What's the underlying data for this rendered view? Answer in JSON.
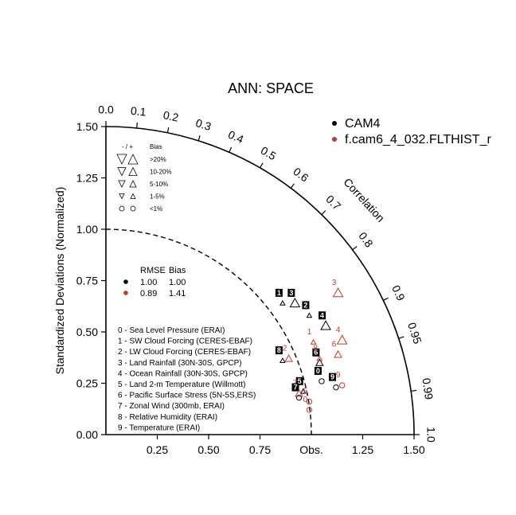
{
  "chart_data": {
    "type": "scatter",
    "title": "ANN: SPACE",
    "ylabel": "Standardized Deviations (Normalized)",
    "xlabel": "",
    "correlation_label": "Correlation",
    "obs_label": "Obs.",
    "ylim": [
      0,
      1.5
    ],
    "xlim": [
      0,
      1.5
    ],
    "x_ticks": [
      {
        "value": 0.25,
        "label": "0.25"
      },
      {
        "value": 0.5,
        "label": "0.50"
      },
      {
        "value": 0.75,
        "label": "0.75"
      },
      {
        "value": 1.25,
        "label": "1.25"
      },
      {
        "value": 1.5,
        "label": "1.50"
      }
    ],
    "y_ticks": [
      {
        "value": 0.0,
        "label": "0.00"
      },
      {
        "value": 0.25,
        "label": "0.25"
      },
      {
        "value": 0.5,
        "label": "0.50"
      },
      {
        "value": 0.75,
        "label": "0.75"
      },
      {
        "value": 1.0,
        "label": "1.00"
      },
      {
        "value": 1.25,
        "label": "1.25"
      },
      {
        "value": 1.5,
        "label": "1.50"
      }
    ],
    "corr_ticks": [
      {
        "value": 0.0,
        "label": "0.0"
      },
      {
        "value": 0.1,
        "label": "0.1"
      },
      {
        "value": 0.2,
        "label": "0.2"
      },
      {
        "value": 0.3,
        "label": "0.3"
      },
      {
        "value": 0.4,
        "label": "0.4"
      },
      {
        "value": 0.5,
        "label": "0.5"
      },
      {
        "value": 0.6,
        "label": "0.6"
      },
      {
        "value": 0.7,
        "label": "0.7"
      },
      {
        "value": 0.8,
        "label": "0.8"
      },
      {
        "value": 0.9,
        "label": "0.9"
      },
      {
        "value": 0.95,
        "label": "0.95"
      },
      {
        "value": 0.99,
        "label": "0.99"
      },
      {
        "value": 1.0,
        "label": "1.0"
      }
    ],
    "reference_arc_radius": 1.0,
    "legend_models": {
      "placement": "top-right",
      "entries": [
        {
          "name": "CAM4",
          "color": "#000000"
        },
        {
          "name": "f.cam6_4_032.FLTHIST_r",
          "color": "#c0392b"
        }
      ]
    },
    "bias_legend": {
      "header_sign": "- / +",
      "header_bias": "Bias",
      "rows": [
        {
          "label": ">20%",
          "size": "xl"
        },
        {
          "label": "10-20%",
          "size": "l"
        },
        {
          "label": "5-10%",
          "size": "m"
        },
        {
          "label": "1-5%",
          "size": "s"
        },
        {
          "label": "<1%",
          "size": "circle"
        }
      ]
    },
    "rmse_table": {
      "header_rmse": "RMSE",
      "header_bias": "Bias",
      "rows": [
        {
          "color": "#000000",
          "rmse": "1.00",
          "bias": "1.00"
        },
        {
          "color": "#c0392b",
          "rmse": "0.89",
          "bias": "1.41"
        }
      ]
    },
    "variables": [
      "0 - Sea Level Pressure (ERAI)",
      "1 - SW Cloud Forcing (CERES-EBAF)",
      "2 - LW Cloud Forcing (CERES-EBAF)",
      "3 - Land Rainfall (30N-30S, GPCP)",
      "4 - Ocean Rainfall (30N-30S, GPCP)",
      "5 - Land 2-m Temperature (Willmott)",
      "6 - Pacific Surface Stress (5N-5S,ERS)",
      "7 - Zonal Wind (300mb, ERAI)",
      "8 - Relative Humidity (ERAI)",
      "9 - Temperature (ERAI)"
    ],
    "series": [
      {
        "name": "CAM4",
        "color": "#000000",
        "points": [
          {
            "id": "0",
            "x": 1.05,
            "y": 0.26,
            "marker": "circle"
          },
          {
            "id": "1",
            "x": 0.86,
            "y": 0.64,
            "marker": "tri-up-s"
          },
          {
            "id": "2",
            "x": 0.99,
            "y": 0.58,
            "marker": "tri-up-s"
          },
          {
            "id": "3",
            "x": 0.92,
            "y": 0.64,
            "marker": "tri-up-l"
          },
          {
            "id": "4",
            "x": 1.07,
            "y": 0.53,
            "marker": "tri-up-l"
          },
          {
            "id": "5",
            "x": 0.96,
            "y": 0.21,
            "marker": "tri-up-s"
          },
          {
            "id": "6",
            "x": 1.04,
            "y": 0.35,
            "marker": "tri-up-m"
          },
          {
            "id": "7",
            "x": 0.94,
            "y": 0.18,
            "marker": "circle"
          },
          {
            "id": "8",
            "x": 0.86,
            "y": 0.36,
            "marker": "tri-up-s"
          },
          {
            "id": "9",
            "x": 1.12,
            "y": 0.23,
            "marker": "circle"
          }
        ]
      },
      {
        "name": "f.cam6_4_032.FLTHIST_r",
        "color": "#c0392b",
        "points": [
          {
            "id": "0",
            "x": 0.99,
            "y": 0.12,
            "marker": "circle"
          },
          {
            "id": "1",
            "x": 1.01,
            "y": 0.45,
            "marker": "tri-up-s"
          },
          {
            "id": "2",
            "x": 0.89,
            "y": 0.37,
            "marker": "tri-up-m"
          },
          {
            "id": "3",
            "x": 1.13,
            "y": 0.69,
            "marker": "tri-up-l"
          },
          {
            "id": "4",
            "x": 1.15,
            "y": 0.46,
            "marker": "tri-up-l"
          },
          {
            "id": "5",
            "x": 0.99,
            "y": 0.16,
            "marker": "circle"
          },
          {
            "id": "6",
            "x": 1.13,
            "y": 0.39,
            "marker": "tri-up-m"
          },
          {
            "id": "7",
            "x": 0.94,
            "y": 0.2,
            "marker": "tri-up-m"
          },
          {
            "id": "8",
            "x": 1.04,
            "y": 0.37,
            "marker": "tri-up-s"
          },
          {
            "id": "9",
            "x": 1.15,
            "y": 0.24,
            "marker": "circle"
          }
        ]
      }
    ]
  }
}
